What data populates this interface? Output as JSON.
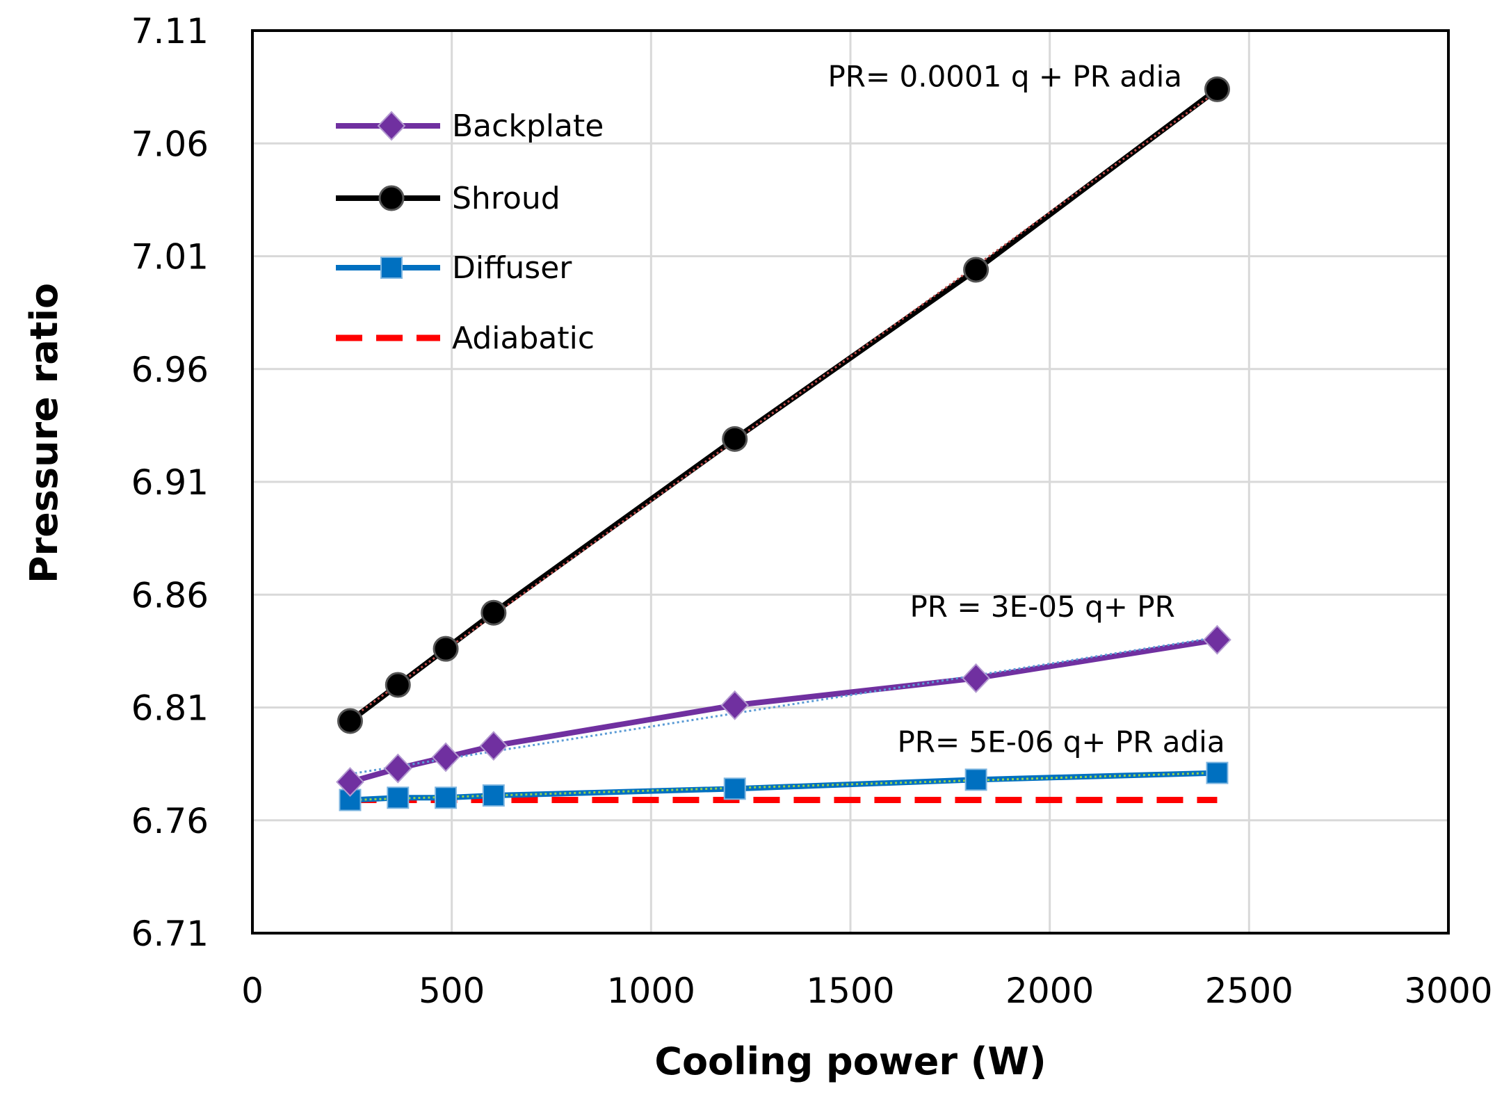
{
  "chart_data": {
    "type": "line",
    "title": "",
    "xlabel": "Cooling power (W)",
    "ylabel": "Pressure ratio",
    "xlim": [
      0,
      3000
    ],
    "ylim": [
      6.71,
      7.11
    ],
    "xticks": [
      0,
      500,
      1000,
      1500,
      2000,
      2500,
      3000
    ],
    "yticks": [
      6.71,
      6.76,
      6.81,
      6.86,
      6.91,
      6.96,
      7.01,
      7.06,
      7.11
    ],
    "xtick_labels": [
      "0",
      "500",
      "1000",
      "1500",
      "2000",
      "2500",
      "3000"
    ],
    "ytick_labels": [
      "6.71",
      "6.76",
      "6.81",
      "6.86",
      "6.91",
      "6.96",
      "7.01",
      "7.06",
      "7.11"
    ],
    "grid": true,
    "legend_position": "top-left",
    "series": [
      {
        "name": "Backplate",
        "color": "#7030a0",
        "marker": "diamond",
        "x": [
          245,
          365,
          485,
          605,
          1210,
          1815,
          2420
        ],
        "y": [
          6.777,
          6.783,
          6.788,
          6.793,
          6.811,
          6.823,
          6.84
        ],
        "trendline": true,
        "trend_color": "#5b9bd5"
      },
      {
        "name": "Shroud",
        "color": "#000000",
        "marker": "circle",
        "x": [
          245,
          365,
          485,
          605,
          1210,
          1815,
          2420
        ],
        "y": [
          6.804,
          6.82,
          6.836,
          6.852,
          6.929,
          7.004,
          7.084
        ],
        "trendline": true,
        "trend_color": "#c0504d"
      },
      {
        "name": "Diffuser",
        "color": "#0070c0",
        "marker": "square",
        "x": [
          245,
          365,
          485,
          605,
          1210,
          1815,
          2420
        ],
        "y": [
          6.769,
          6.77,
          6.77,
          6.771,
          6.774,
          6.778,
          6.781
        ],
        "trendline": true,
        "trend_color": "#92d050"
      },
      {
        "name": "Adiabatic",
        "color": "#ff0000",
        "marker": "none",
        "dashed": true,
        "x": [
          245,
          2420
        ],
        "y": [
          6.769,
          6.769
        ]
      }
    ],
    "annotations": [
      {
        "text": "PR= 0.0001 q + PR adia",
        "series": "Shroud"
      },
      {
        "text": "PR = 3E-05 q+ PR",
        "series": "Backplate"
      },
      {
        "text": "PR= 5E-06 q+ PR adia",
        "series": "Diffuser"
      }
    ]
  }
}
